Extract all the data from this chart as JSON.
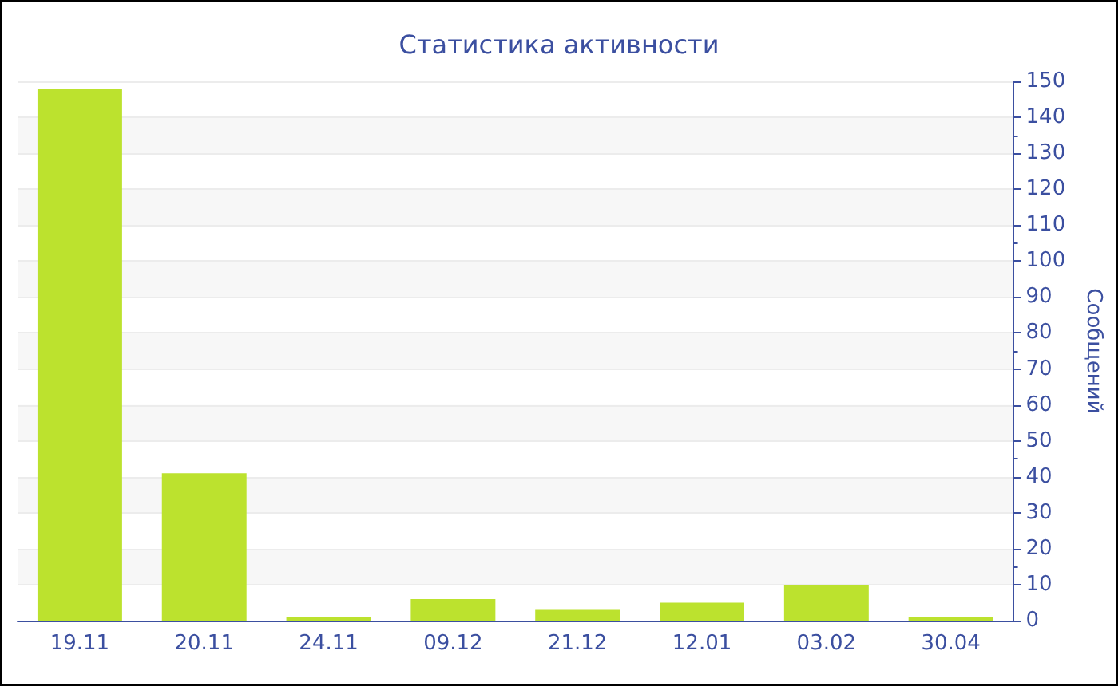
{
  "chart_data": {
    "type": "bar",
    "title": "Статистика активности",
    "ylabel": "Сообщений",
    "categories": [
      "19.11",
      "20.11",
      "24.11",
      "09.12",
      "21.12",
      "12.01",
      "03.02",
      "30.04"
    ],
    "values": [
      148,
      41,
      1,
      6,
      3,
      5,
      10,
      1
    ],
    "color": "#bce22e",
    "ylim": [
      0,
      150
    ],
    "yticks": [
      0,
      10,
      20,
      30,
      40,
      50,
      60,
      70,
      80,
      90,
      100,
      110,
      120,
      130,
      140,
      150
    ],
    "grid": "y"
  }
}
